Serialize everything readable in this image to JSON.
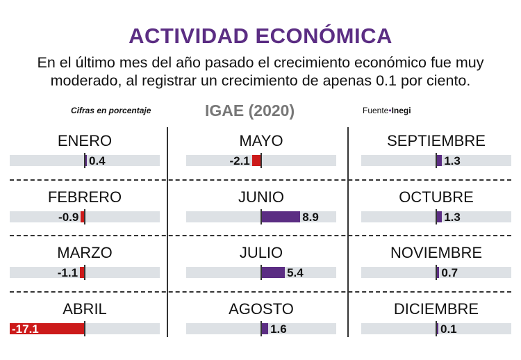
{
  "title": "ACTIVIDAD ECONÓMICA",
  "subtitle_line1": "En el último mes del año pasado el crecimiento económico fue muy",
  "subtitle_line2": "moderado, al registrar un crecimiento de apenas 0.1 por ciento.",
  "units_note": "Cifras en porcentaje",
  "source_label": "Fuente",
  "source_name": "Inegi",
  "colors": {
    "positive": "#5b2d83",
    "negative": "#cc1a1a",
    "track": "#dde1e5"
  },
  "chart_data": {
    "type": "bar",
    "title": "IGAE (2020)",
    "categories": [
      "ENERO",
      "FEBRERO",
      "MARZO",
      "ABRIL",
      "MAYO",
      "JUNIO",
      "JULIO",
      "AGOSTO",
      "SEPTIEMBRE",
      "OCTUBRE",
      "NOVIEMBRE",
      "DICIEMBRE"
    ],
    "values": [
      0.4,
      -0.9,
      -1.1,
      -17.1,
      -2.1,
      8.9,
      5.4,
      1.6,
      1.3,
      1.3,
      0.7,
      0.1
    ],
    "labels": [
      "0.4",
      "-0.9",
      "-1.1",
      "-17.1",
      "-2.1",
      "8.9",
      "5.4",
      "1.6",
      "1.3",
      "1.3",
      "0.7",
      "0.1"
    ],
    "xlim": [
      -17.1,
      17.1
    ]
  }
}
